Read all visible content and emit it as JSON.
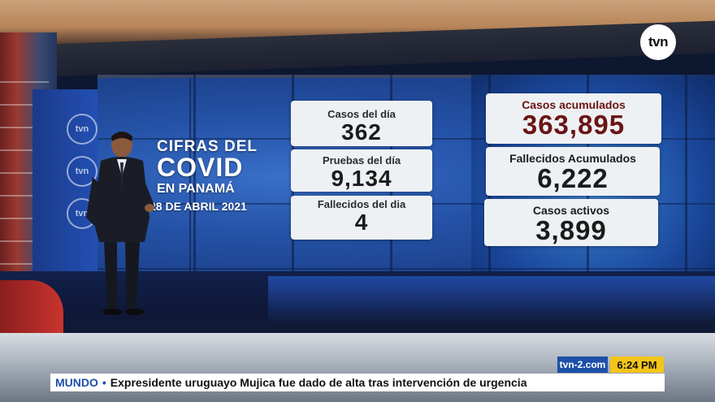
{
  "broadcast": {
    "channel_logo": "tvn",
    "site": "tvn-2.com",
    "time": "6:24 PM"
  },
  "title": {
    "line1": "CIFRAS DEL",
    "line2": "COVID",
    "line3": "EN PANAMÁ",
    "date": "28 DE ABRIL 2021"
  },
  "stats": {
    "casos_dia": {
      "label": "Casos del día",
      "value": "362"
    },
    "pruebas_dia": {
      "label": "Pruebas del día",
      "value": "9,134"
    },
    "fallecidos_dia": {
      "label": "Fallecidos del dia",
      "value": "4"
    },
    "casos_acumulados": {
      "label": "Casos acumulados",
      "value": "363,895"
    },
    "fallecidos_acumulados": {
      "label": "Fallecidos Acumulados",
      "value": "6,222"
    },
    "casos_activos": {
      "label": "Casos activos",
      "value": "3,899"
    }
  },
  "ticker": {
    "section": "MUNDO",
    "headline": "Expresidente uruguayo Mujica fue dado de alta tras intervención de urgencia"
  },
  "colors": {
    "accent_blue": "#1d4fa8",
    "time_yellow": "#f5c518",
    "card_bg": "#eef1f4",
    "accumulated_red": "#6b1414"
  }
}
